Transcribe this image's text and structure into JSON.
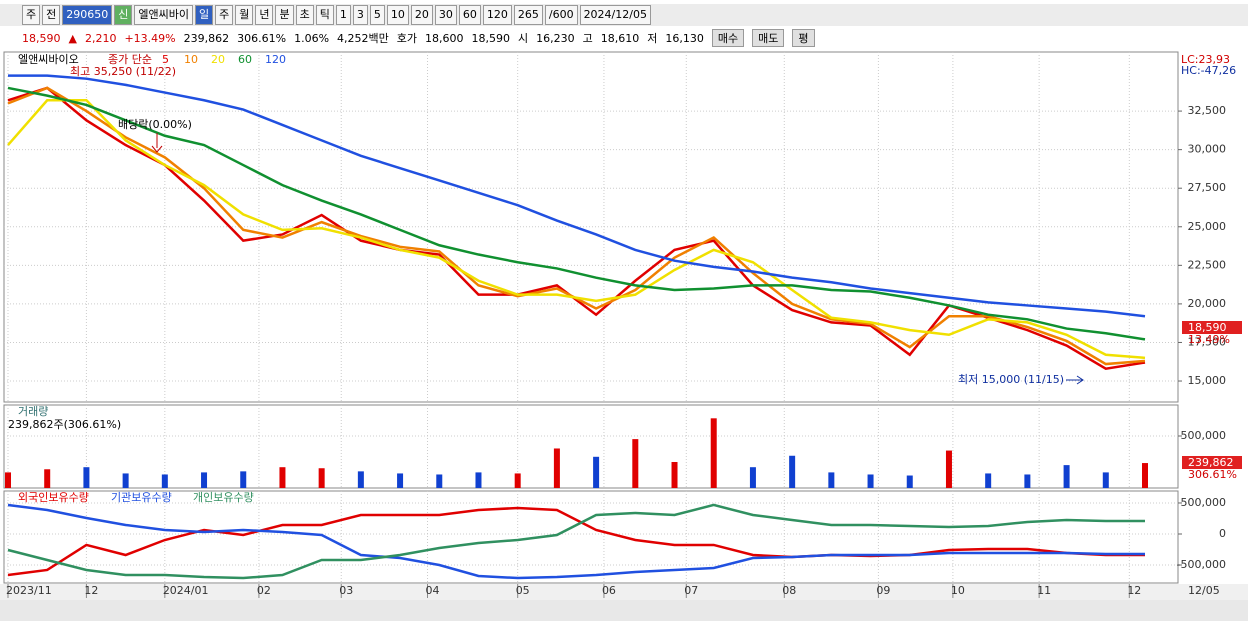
{
  "toolbar": {
    "items": [
      "주",
      "전",
      "290650",
      "신",
      "엘앤씨바이",
      "일",
      "주",
      "월",
      "년",
      "분",
      "초",
      "틱",
      "1",
      "3",
      "5",
      "10",
      "20",
      "30",
      "60",
      "120",
      "265",
      "/600",
      "2024/12/05"
    ]
  },
  "quote": {
    "items": [
      "18,590",
      "▲",
      "2,210",
      "+13.49%",
      "239,862",
      "306.61%",
      "1.06%",
      "4,252백만",
      "호가",
      "18,600",
      "18,590",
      "시",
      "16,230",
      "고",
      "18,610",
      "저",
      "16,130",
      "매수",
      "매도",
      "평"
    ]
  },
  "last_date": "12/05",
  "chart_data": [
    {
      "type": "line",
      "title": "엘앤씨바이오",
      "legend_title": "종가 단순",
      "series": [
        {
          "name": "5",
          "color": "#e00000",
          "values": [
            33200,
            34000,
            31900,
            30300,
            29000,
            26700,
            24100,
            24500,
            25760,
            24100,
            23500,
            23200,
            20600,
            20600,
            21200,
            19300,
            21500,
            23500,
            24100,
            21200,
            19600,
            18800,
            18600,
            16700,
            19900,
            19100,
            18300,
            17300,
            15800,
            16200
          ]
        },
        {
          "name": "10",
          "color": "#f08000",
          "values": [
            33000,
            34000,
            32500,
            30800,
            29500,
            27500,
            24800,
            24300,
            25300,
            24400,
            23700,
            23400,
            21200,
            20500,
            21000,
            19700,
            20900,
            23000,
            24300,
            22000,
            20000,
            19000,
            18700,
            17200,
            19200,
            19200,
            18500,
            17600,
            16100,
            16300
          ]
        },
        {
          "name": "20",
          "color": "#f0e000",
          "values": [
            30300,
            33200,
            33200,
            30600,
            29000,
            27700,
            25800,
            24800,
            24900,
            24300,
            23500,
            23000,
            21500,
            20600,
            20600,
            20200,
            20600,
            22200,
            23500,
            22700,
            20900,
            19100,
            18800,
            18300,
            18000,
            19000,
            18800,
            18000,
            16700,
            16500
          ]
        },
        {
          "name": "60",
          "color": "#109030",
          "values": [
            34000,
            33500,
            32900,
            31900,
            30900,
            30300,
            29000,
            27700,
            26700,
            25800,
            24800,
            23800,
            23200,
            22700,
            22300,
            21700,
            21200,
            20900,
            21000,
            21200,
            21200,
            20900,
            20800,
            20400,
            19900,
            19300,
            19000,
            18400,
            18100,
            17700
          ]
        },
        {
          "name": "120",
          "color": "#2050e0",
          "values": [
            34800,
            34800,
            34600,
            34200,
            33700,
            33200,
            32600,
            31600,
            30600,
            29600,
            28800,
            28000,
            27200,
            26400,
            25400,
            24500,
            23500,
            22800,
            22400,
            22100,
            21700,
            21400,
            21000,
            20700,
            20400,
            20100,
            19900,
            19700,
            19500,
            19200
          ]
        }
      ],
      "ylim": [
        13640,
        36330
      ],
      "yticks": [
        {
          "value": 15000,
          "label": "15,000"
        },
        {
          "value": 17500,
          "label": "17,500"
        },
        {
          "value": 20000,
          "label": "20,000"
        },
        {
          "value": 22500,
          "label": "22,500"
        },
        {
          "value": 25000,
          "label": "25,000"
        },
        {
          "value": 27500,
          "label": "27,500"
        },
        {
          "value": 30000,
          "label": "30,000"
        },
        {
          "value": 32500,
          "label": "32,500"
        }
      ],
      "annotations": [
        "최고 35,250 (11/22)",
        "배당락(0.00%)",
        "최저 15,000 (11/15)"
      ],
      "corner_labels": [
        "LC:23,93",
        "HC:-47,26"
      ],
      "last_labels": [
        "18,590",
        "13.49%"
      ]
    },
    {
      "type": "bar",
      "title": "거래량",
      "subtitle": "239,862주(306.61%)",
      "values": [
        150000,
        180000,
        200000,
        140000,
        130000,
        150000,
        160000,
        200000,
        190000,
        160000,
        140000,
        130000,
        150000,
        140000,
        380000,
        300000,
        470000,
        250000,
        670000,
        200000,
        310000,
        150000,
        130000,
        120000,
        360000,
        140000,
        130000,
        220000,
        150000,
        239862
      ],
      "colors": [
        "#e00000",
        "#1040d0"
      ],
      "ylim": [
        0,
        798000
      ],
      "yticks": [
        {
          "value": 500000,
          "label": "500,000"
        }
      ],
      "last_labels": [
        "239,862",
        "306.61%"
      ]
    },
    {
      "type": "line",
      "series": [
        {
          "name": "외국인보유수량",
          "color": "#e00000",
          "values": [
            -661000,
            -580000,
            -177000,
            -339000,
            -97000,
            65000,
            -16000,
            145000,
            145000,
            306000,
            306000,
            306000,
            387000,
            419000,
            387000,
            65000,
            -97000,
            -177000,
            -177000,
            -339000,
            -371000,
            -339000,
            -355000,
            -339000,
            -258000,
            -242000,
            -242000,
            -306000,
            -339000,
            -339000
          ]
        },
        {
          "name": "기관보유수량",
          "color": "#2050e0",
          "values": [
            468000,
            387000,
            258000,
            145000,
            65000,
            32000,
            65000,
            32000,
            -16000,
            -339000,
            -387000,
            -500000,
            -677000,
            -710000,
            -694000,
            -661000,
            -613000,
            -580000,
            -548000,
            -387000,
            -371000,
            -339000,
            -339000,
            -339000,
            -306000,
            -306000,
            -306000,
            -306000,
            -323000,
            -323000
          ]
        },
        {
          "name": "개인보유수량",
          "color": "#309060",
          "values": [
            -258000,
            -419000,
            -580000,
            -661000,
            -661000,
            -694000,
            -710000,
            -661000,
            -419000,
            -419000,
            -339000,
            -226000,
            -145000,
            -97000,
            -16000,
            306000,
            339000,
            306000,
            468000,
            306000,
            226000,
            145000,
            145000,
            129000,
            113000,
            129000,
            194000,
            226000,
            210000,
            210000
          ]
        }
      ],
      "ylim": [
        -790000,
        693000
      ],
      "yticks": [
        {
          "value": -500000,
          "label": "-500,000"
        },
        0,
        {
          "value": 500000,
          "label": "500,000"
        }
      ],
      "xlim": [
        0,
        29
      ],
      "xticks": [
        {
          "value": 0,
          "label": "2023/11"
        },
        {
          "value": 2,
          "label": "12"
        },
        {
          "value": 4,
          "label": "2024/01"
        },
        {
          "value": 6.4,
          "label": "02"
        },
        {
          "value": 8.5,
          "label": "03"
        },
        {
          "value": 10.7,
          "label": "04"
        },
        {
          "value": 13,
          "label": "05"
        },
        {
          "value": 15.2,
          "label": "06"
        },
        {
          "value": 17.3,
          "label": "07"
        },
        {
          "value": 19.8,
          "label": "08"
        },
        {
          "value": 22.2,
          "label": "09"
        },
        {
          "value": 24.1,
          "label": "10"
        },
        {
          "value": 26.3,
          "label": "11"
        },
        {
          "value": 28.6,
          "label": "12"
        }
      ]
    }
  ]
}
